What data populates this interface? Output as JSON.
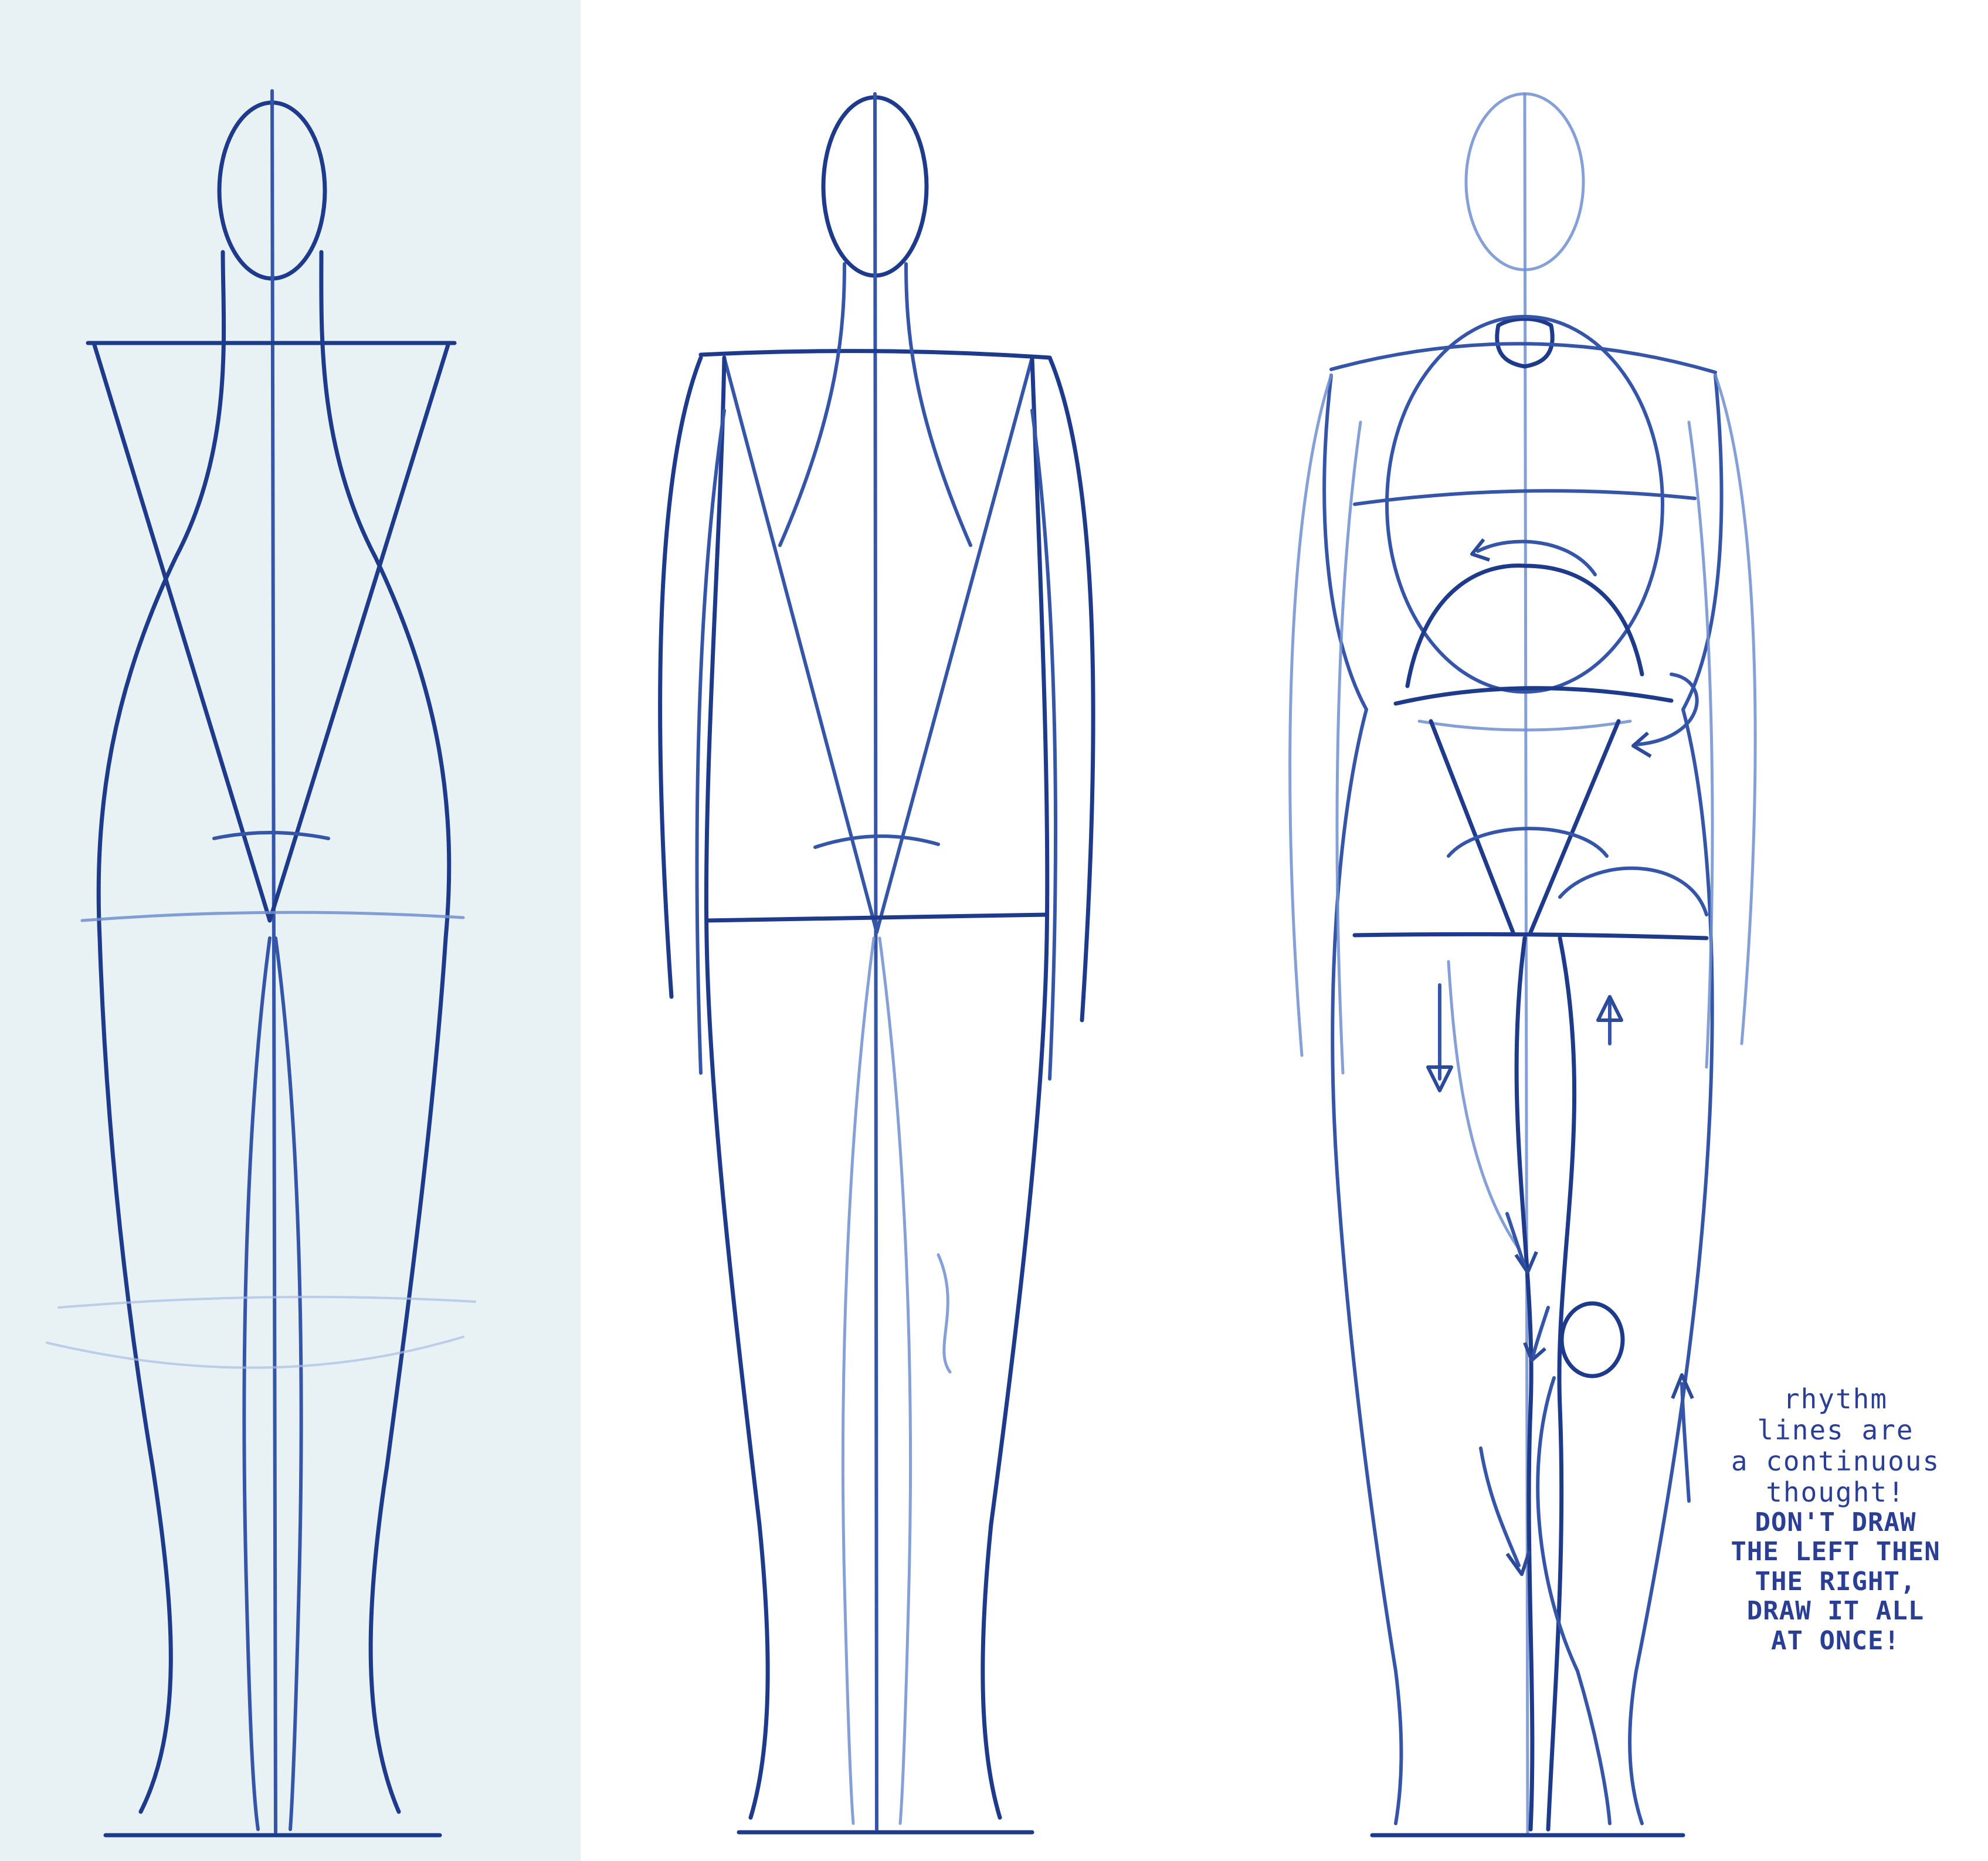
{
  "sheet": {
    "colors": {
      "panel_background": "#e8f1f4",
      "paper": "#ffffff",
      "pencil_dark": "#1e3a8a",
      "pencil_mid": "#3556a8",
      "pencil_light": "#6f8fcf"
    },
    "figures": [
      {
        "name": "figure-1-construction-grid"
      },
      {
        "name": "figure-2-contour-with-arms"
      },
      {
        "name": "figure-3-rhythm-lines"
      }
    ],
    "note": {
      "lines": [
        "rhythm",
        "lines are",
        "a continuous",
        "thought!",
        "DON'T DRAW",
        "THE LEFT THEN",
        "THE RIGHT,",
        "DRAW IT ALL",
        "AT ONCE!"
      ]
    }
  }
}
